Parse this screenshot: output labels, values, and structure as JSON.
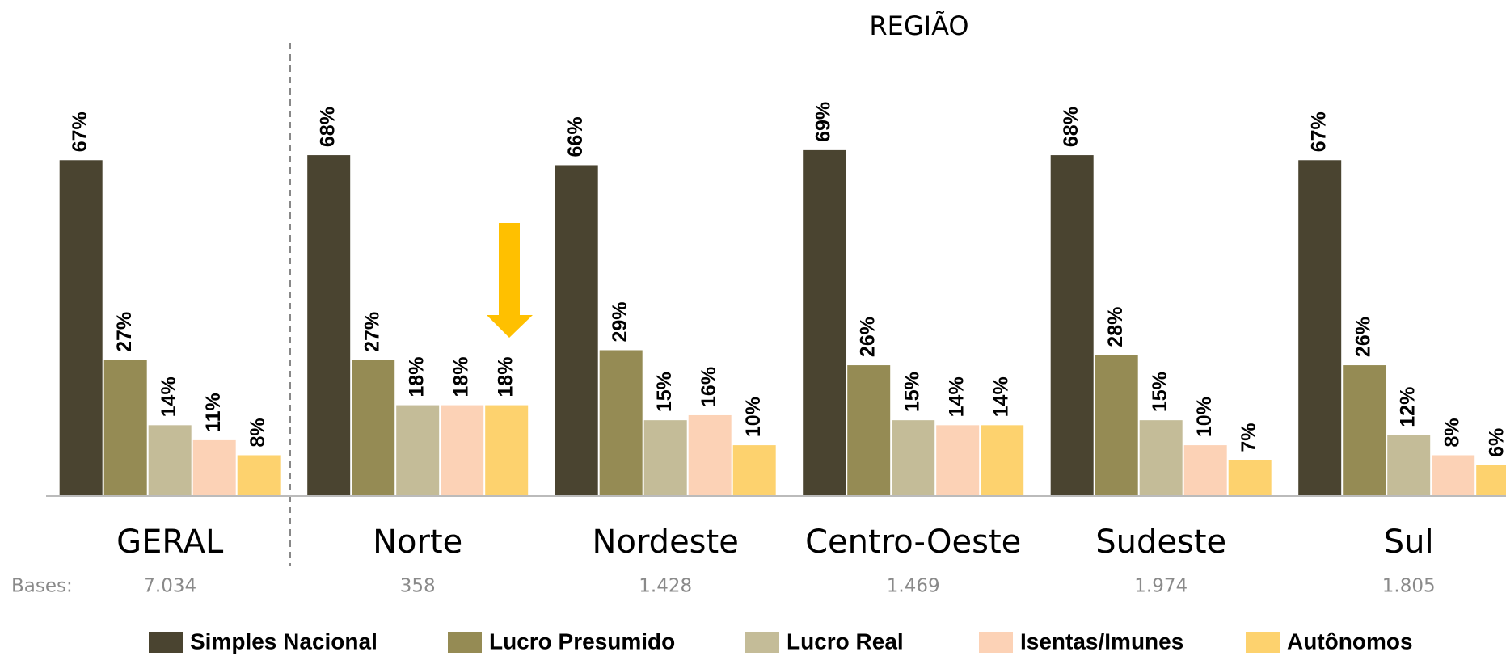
{
  "chart_data": {
    "type": "bar",
    "title": "REGIÃO",
    "categories": [
      "GERAL",
      "Norte",
      "Nordeste",
      "Centro-Oeste",
      "Sudeste",
      "Sul"
    ],
    "bases_label": "Bases:",
    "bases": [
      "7.034",
      "358",
      "1.428",
      "1.469",
      "1.974",
      "1.805"
    ],
    "ylim": [
      0,
      100
    ],
    "series": [
      {
        "name": "Simples Nacional",
        "color": "#4a4430",
        "values": [
          67,
          68,
          66,
          69,
          68,
          67
        ],
        "value_labels": [
          "67%",
          "68%",
          "66%",
          "69%",
          "68%",
          "67%"
        ]
      },
      {
        "name": "Lucro Presumido",
        "color": "#958b54",
        "values": [
          27,
          27,
          29,
          26,
          28,
          26
        ],
        "value_labels": [
          "27%",
          "27%",
          "29%",
          "26%",
          "28%",
          "26%"
        ]
      },
      {
        "name": "Lucro Real",
        "color": "#c4bc98",
        "values": [
          14,
          18,
          15,
          15,
          15,
          12
        ],
        "value_labels": [
          "14%",
          "18%",
          "15%",
          "15%",
          "15%",
          "12%"
        ]
      },
      {
        "name": "Isentas/Imunes",
        "color": "#fcd2b6",
        "values": [
          11,
          18,
          16,
          14,
          10,
          8
        ],
        "value_labels": [
          "11%",
          "18%",
          "16%",
          "14%",
          "10%",
          "8%"
        ]
      },
      {
        "name": "Autônomos",
        "color": "#fdd26e",
        "values": [
          8,
          18,
          10,
          14,
          7,
          6
        ],
        "value_labels": [
          "8%",
          "18%",
          "10%",
          "14%",
          "7%",
          "6%"
        ]
      }
    ]
  }
}
